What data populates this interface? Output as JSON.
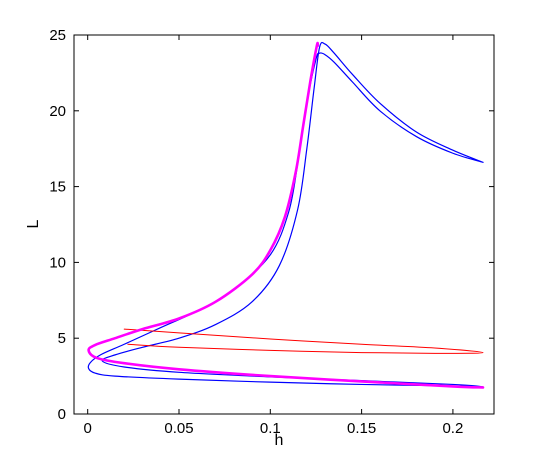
{
  "chart_data": {
    "type": "line",
    "xlabel": "h",
    "ylabel": "L",
    "xlim": [
      -0.0075,
      0.2225
    ],
    "ylim": [
      0,
      25
    ],
    "xticks": [
      0,
      0.05,
      0.1,
      0.15,
      0.2
    ],
    "xtick_labels": [
      "0",
      "0.05",
      "0.1",
      "0.15",
      "0.2"
    ],
    "yticks": [
      0,
      5,
      10,
      15,
      20,
      25
    ],
    "ytick_labels": [
      "0",
      "5",
      "10",
      "15",
      "20",
      "25"
    ],
    "grid": false,
    "series": [
      {
        "color": "#0000ff",
        "line_width": 1.2,
        "points": [
          [
            0.2165,
            16.6
          ],
          [
            0.2,
            17.2
          ],
          [
            0.18,
            18.3
          ],
          [
            0.16,
            20.0
          ],
          [
            0.145,
            21.9
          ],
          [
            0.135,
            23.2
          ],
          [
            0.13,
            23.7
          ],
          [
            0.127,
            23.8
          ],
          [
            0.125,
            23.4
          ],
          [
            0.12,
            20.5
          ],
          [
            0.115,
            16.5
          ],
          [
            0.11,
            13.3
          ],
          [
            0.1,
            10.5
          ],
          [
            0.08,
            8.2
          ],
          [
            0.06,
            6.8
          ],
          [
            0.04,
            5.7
          ],
          [
            0.02,
            4.6
          ],
          [
            0.007,
            3.9
          ],
          [
            0.0015,
            3.4
          ],
          [
            0.0005,
            3.0
          ],
          [
            0.004,
            2.7
          ],
          [
            0.015,
            2.5
          ],
          [
            0.05,
            2.3
          ],
          [
            0.1,
            2.1
          ],
          [
            0.15,
            1.95
          ],
          [
            0.2,
            1.85
          ],
          [
            0.2165,
            1.8
          ],
          [
            0.2,
            1.95
          ],
          [
            0.15,
            2.2
          ],
          [
            0.1,
            2.45
          ],
          [
            0.05,
            2.75
          ],
          [
            0.02,
            3.1
          ],
          [
            0.008,
            3.5
          ],
          [
            0.015,
            3.9
          ],
          [
            0.03,
            4.4
          ],
          [
            0.05,
            5.0
          ],
          [
            0.07,
            5.9
          ],
          [
            0.09,
            7.4
          ],
          [
            0.105,
            9.8
          ],
          [
            0.115,
            13.5
          ],
          [
            0.12,
            17.5
          ],
          [
            0.124,
            21.5
          ],
          [
            0.127,
            24.2
          ],
          [
            0.13,
            24.4
          ],
          [
            0.135,
            23.8
          ],
          [
            0.145,
            22.4
          ],
          [
            0.16,
            20.5
          ],
          [
            0.18,
            18.6
          ],
          [
            0.2,
            17.4
          ],
          [
            0.2165,
            16.6
          ]
        ]
      },
      {
        "color": "#ff0000",
        "line_width": 1.0,
        "points": [
          [
            0.02,
            5.6
          ],
          [
            0.05,
            5.35
          ],
          [
            0.1,
            4.95
          ],
          [
            0.15,
            4.6
          ],
          [
            0.19,
            4.35
          ],
          [
            0.2165,
            4.05
          ],
          [
            0.19,
            4.0
          ],
          [
            0.15,
            4.05
          ],
          [
            0.1,
            4.2
          ],
          [
            0.05,
            4.4
          ],
          [
            0.022,
            4.6
          ]
        ]
      },
      {
        "color": "#ff00ff",
        "line_width": 2.6,
        "points": [
          [
            0.2165,
            1.75
          ],
          [
            0.2,
            1.82
          ],
          [
            0.15,
            2.15
          ],
          [
            0.1,
            2.5
          ],
          [
            0.05,
            2.95
          ],
          [
            0.02,
            3.35
          ],
          [
            0.005,
            3.7
          ],
          [
            0.0005,
            4.2
          ],
          [
            0.004,
            4.55
          ],
          [
            0.015,
            5.0
          ],
          [
            0.03,
            5.6
          ],
          [
            0.05,
            6.3
          ],
          [
            0.07,
            7.4
          ],
          [
            0.09,
            9.2
          ],
          [
            0.1,
            10.8
          ],
          [
            0.108,
            13.0
          ],
          [
            0.114,
            16.0
          ],
          [
            0.118,
            19.0
          ],
          [
            0.122,
            22.0
          ],
          [
            0.1255,
            24.3
          ],
          [
            0.126,
            24.3
          ]
        ]
      }
    ]
  }
}
